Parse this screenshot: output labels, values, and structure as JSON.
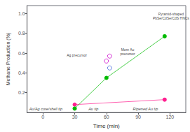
{
  "chart_data": {
    "type": "scatter",
    "xlabel": "Time (min)",
    "ylabel": "Methane Production (%)",
    "xlim": [
      -15,
      135
    ],
    "ylim": [
      0.0,
      1.08
    ],
    "xticks": [
      0,
      30,
      60,
      90,
      120
    ],
    "yticks": [
      0.2,
      0.4,
      0.6,
      0.8,
      {
        "value": 1.0,
        "label": "1.0"
      }
    ],
    "grid": false,
    "series": [
      {
        "type": "line",
        "color": "#ff2090",
        "marker": "circle",
        "x": [
          30,
          115
        ],
        "values": [
          0.08,
          0.13
        ]
      },
      {
        "type": "line",
        "color": "#00bb00",
        "marker": "circle",
        "x": [
          30,
          60,
          115
        ],
        "values": [
          0.04,
          0.35,
          0.77
        ]
      },
      {
        "type": "scatter",
        "color": "#cc00cc",
        "marker": "open circle",
        "x": [
          60,
          63
        ],
        "values": [
          0.52,
          0.57
        ]
      },
      {
        "type": "scatter",
        "color": "#4466dd",
        "marker": "open circle",
        "x": [
          63
        ],
        "values": [
          0.45
        ]
      }
    ],
    "annotations": [
      {
        "text": "Au/Ag core/shell tip",
        "x": -13,
        "y": 0.015
      },
      {
        "text": "Au tip",
        "x": 43,
        "y": 0.015
      },
      {
        "text": "Ripened Au tip",
        "x": 85,
        "y": 0.015
      },
      {
        "text": "Ag precursor",
        "x": 32,
        "y": 0.56
      },
      {
        "text": "More Au\nprecursor",
        "x": 80,
        "y": 0.57
      },
      {
        "text": "Pyramid-shaped\nPbSe/CdSe/CdS HNCs",
        "x": 121,
        "y": 0.93
      }
    ]
  }
}
